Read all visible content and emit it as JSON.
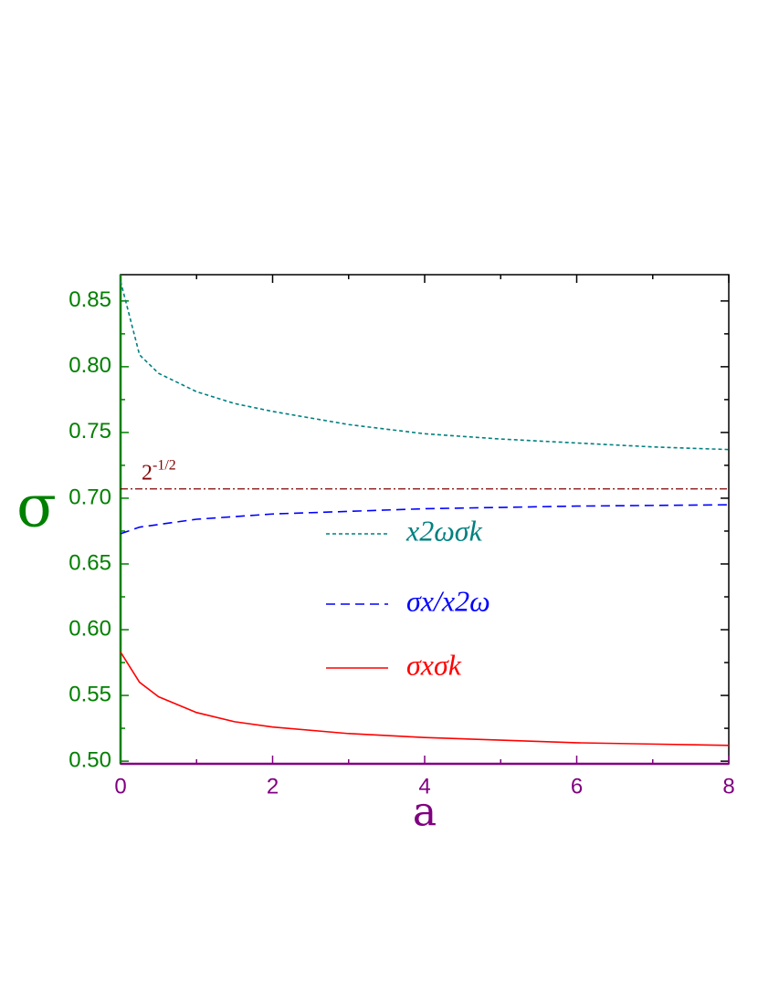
{
  "chart_data": {
    "type": "line",
    "xlabel": "a",
    "ylabel": "σ",
    "x": [
      0,
      0.25,
      0.5,
      1,
      1.5,
      2,
      3,
      4,
      5,
      6,
      7,
      8
    ],
    "series": [
      {
        "name": "x2ωσk",
        "color": "#008080",
        "dash": "4 3",
        "values": [
          0.865,
          0.809,
          0.795,
          0.781,
          0.772,
          0.766,
          0.756,
          0.749,
          0.745,
          0.742,
          0.739,
          0.737
        ]
      },
      {
        "name": "σx/x2ω",
        "color": "#0000ff",
        "dash": "10 6",
        "values": [
          0.673,
          0.678,
          0.68,
          0.684,
          0.686,
          0.688,
          0.69,
          0.692,
          0.693,
          0.694,
          0.6945,
          0.695
        ]
      },
      {
        "name": "σxσk",
        "color": "#ff0000",
        "dash": "none",
        "values": [
          0.583,
          0.56,
          0.549,
          0.537,
          0.53,
          0.526,
          0.521,
          0.518,
          0.516,
          0.514,
          0.513,
          0.512
        ]
      }
    ],
    "reference": {
      "value": 0.7071,
      "base": "2",
      "exponent": "-1/2",
      "color": "#800000"
    },
    "xlim": [
      0,
      8
    ],
    "xticks": [
      0,
      2,
      4,
      6,
      8
    ],
    "xminor": [
      1,
      3,
      5,
      7
    ],
    "ylim": [
      0.498,
      0.87
    ],
    "yticks": [
      {
        "value": 0.5,
        "label": "0.50"
      },
      0.55,
      {
        "value": 0.6,
        "label": "0.60"
      },
      0.65,
      {
        "value": 0.7,
        "label": "0.70"
      },
      0.75,
      {
        "value": 0.8,
        "label": "0.80"
      },
      0.85
    ],
    "yminor": [
      0.525,
      0.575,
      0.625,
      0.675,
      0.725,
      0.775,
      0.825
    ],
    "xaxis_color": "#800080",
    "yaxis_color": "#008000"
  }
}
